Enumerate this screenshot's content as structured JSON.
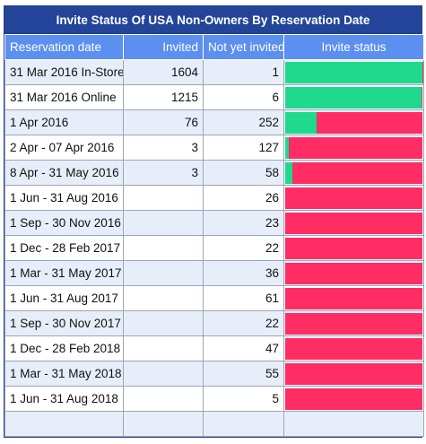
{
  "title": "Invite Status Of USA Non-Owners By Reservation Date",
  "headers": {
    "date": "Reservation date",
    "invited": "Invited",
    "not_yet": "Not yet invited",
    "status": "Invite status"
  },
  "colors": {
    "invited": "#1fd98d",
    "not_yet": "#ff2d63",
    "header": "#5b8ff0",
    "title": "#234599"
  },
  "rows": [
    {
      "date": "31 Mar 2016 In-Store",
      "invited": "1604",
      "not_yet": "1"
    },
    {
      "date": "31 Mar 2016 Online",
      "invited": "1215",
      "not_yet": "6"
    },
    {
      "date": "1 Apr 2016",
      "invited": "76",
      "not_yet": "252"
    },
    {
      "date": "2 Apr - 07 Apr 2016",
      "invited": "3",
      "not_yet": "127"
    },
    {
      "date": "8 Apr - 31 May 2016",
      "invited": "3",
      "not_yet": "58"
    },
    {
      "date": "1 Jun - 31 Aug 2016",
      "invited": "",
      "not_yet": "26"
    },
    {
      "date": "1 Sep - 30 Nov 2016",
      "invited": "",
      "not_yet": "23"
    },
    {
      "date": "1 Dec - 28 Feb 2017",
      "invited": "",
      "not_yet": "22"
    },
    {
      "date": "1 Mar - 31 May 2017",
      "invited": "",
      "not_yet": "36"
    },
    {
      "date": "1 Jun - 31 Aug 2017",
      "invited": "",
      "not_yet": "61"
    },
    {
      "date": "1 Sep - 30 Nov 2017",
      "invited": "",
      "not_yet": "22"
    },
    {
      "date": "1 Dec - 28 Feb 2018",
      "invited": "",
      "not_yet": "47"
    },
    {
      "date": "1 Mar - 31 May 2018",
      "invited": "",
      "not_yet": "55"
    },
    {
      "date": "1 Jun - 31 Aug 2018",
      "invited": "",
      "not_yet": "5"
    },
    {
      "date": "",
      "invited": "",
      "not_yet": ""
    }
  ]
}
